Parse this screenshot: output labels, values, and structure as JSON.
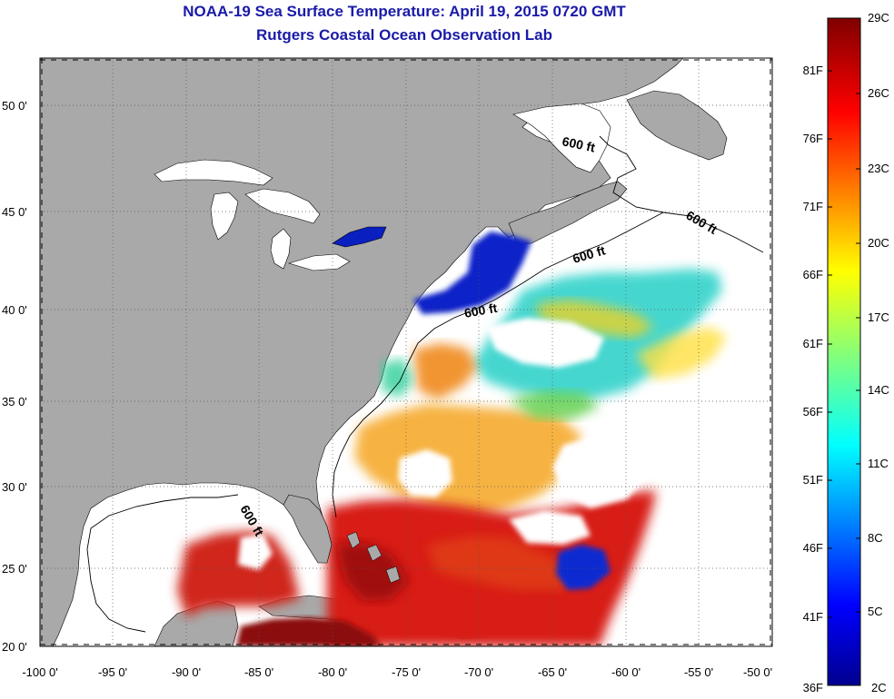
{
  "title": "NOAA-19 Sea Surface Temperature:  April 19, 2015 0720 GMT",
  "subtitle": "Rutgers Coastal Ocean Observation Lab",
  "lat_ticks": [
    "20 0'",
    "25 0'",
    "30 0'",
    "35 0'",
    "40 0'",
    "45 0'",
    "50 0'"
  ],
  "lon_ticks": [
    "-100 0'",
    "-95 0'",
    "-90 0'",
    "-85 0'",
    "-80 0'",
    "-75 0'",
    "-70 0'",
    "-65 0'",
    "-60 0'",
    "-55 0'",
    "-50 0'"
  ],
  "contour_label": "600 ft",
  "colorbar": {
    "fahrenheit_labels": [
      "81F",
      "76F",
      "71F",
      "66F",
      "61F",
      "56F",
      "51F",
      "46F",
      "41F",
      "36F"
    ],
    "celsius_labels": [
      "29C",
      "26C",
      "23C",
      "20C",
      "17C",
      "14C",
      "11C",
      "8C",
      "5C",
      "2C"
    ]
  },
  "colors": {
    "land": "#a9a9a9",
    "title": "#1a1aa8",
    "cold": "#00008f",
    "warm": "#d41414",
    "hot": "#7f0000"
  }
}
